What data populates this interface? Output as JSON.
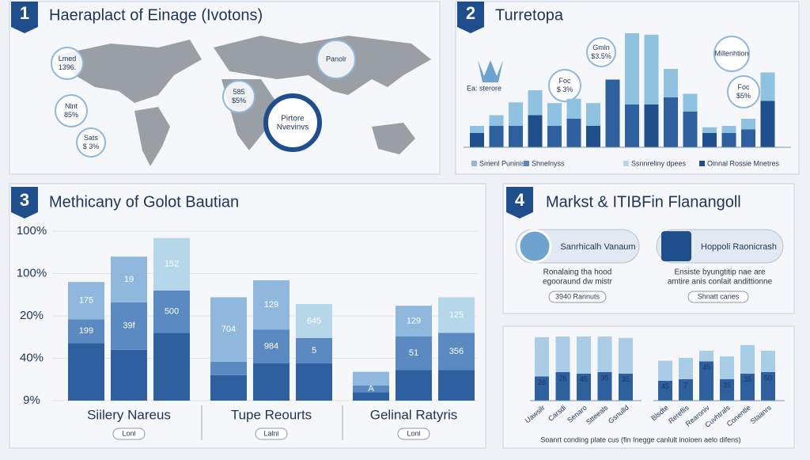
{
  "panel1": {
    "number": "1",
    "title": "Haeraplact of Einage (Ivotons)",
    "bubbles": [
      [
        "Lmed",
        "1396."
      ],
      [
        "Nlnt",
        "85%"
      ],
      [
        "Sats",
        "$ 3%"
      ],
      [
        "Panolr"
      ],
      [
        "585",
        "$5%"
      ]
    ],
    "highlight": [
      "Pirtore",
      "Nvevinvs"
    ]
  },
  "panel2": {
    "number": "2",
    "title": "Turretopa",
    "icon_label": "Ea: sterore",
    "bubbles": [
      [
        "Gmln",
        "$3.5%"
      ],
      [
        "Foc",
        "$ 3%"
      ],
      [
        "Millenhtion"
      ],
      [
        "Foc",
        "$5%"
      ]
    ],
    "bars_dark": [
      20,
      30,
      30,
      45,
      30,
      40,
      30,
      95,
      60,
      60,
      70,
      50,
      20,
      20,
      25,
      65
    ],
    "bars_light": [
      10,
      15,
      33,
      35,
      32,
      28,
      32,
      0,
      100,
      98,
      40,
      25,
      8,
      10,
      15,
      40
    ],
    "legend": [
      "Smenl Puninis",
      "Shnelnyss",
      "Ssnnreliny dpees",
      "Oinnal Rossie Mnetres"
    ]
  },
  "panel3": {
    "number": "3",
    "title": "Methicany of Golot Bautian",
    "y_labels": [
      "100%",
      "100%",
      "20%",
      "40%",
      "9%"
    ],
    "groups": [
      {
        "name": "Siilery Nareus",
        "button": "Loni",
        "bars": [
          {
            "segments": [
              34,
              14,
              22
            ],
            "labels": [
              null,
              "199",
              "175"
            ]
          },
          {
            "segments": [
              30,
              28,
              27
            ],
            "labels": [
              null,
              "39f",
              "19"
            ]
          },
          {
            "segments": [
              40,
              25,
              31
            ],
            "labels": [
              null,
              "500",
              "152"
            ]
          }
        ]
      },
      {
        "name": "Tupe Reourts",
        "button": "Lalni",
        "bars": [
          {
            "segments": [
              15,
              8,
              38
            ],
            "labels": [
              null,
              null,
              "704"
            ]
          },
          {
            "segments": [
              22,
              20,
              29
            ],
            "labels": [
              null,
              "984",
              "129"
            ]
          },
          {
            "segments": [
              22,
              15,
              20
            ],
            "labels": [
              null,
              "5",
              "645"
            ]
          }
        ]
      },
      {
        "name": "Gelinal Ratyris",
        "button": "Loni",
        "bars": [
          {
            "segments": [
              5,
              4,
              8
            ],
            "labels": [
              null,
              "A",
              null
            ]
          },
          {
            "segments": [
              18,
              20,
              18
            ],
            "labels": [
              null,
              "51",
              "129"
            ]
          },
          {
            "segments": [
              18,
              22,
              21
            ],
            "labels": [
              null,
              "356",
              "125"
            ]
          }
        ]
      }
    ]
  },
  "panel4": {
    "number": "4",
    "title": "Markst & ITIBFin Flanangoll",
    "cards": [
      {
        "title": "Sanrhicalh Vanaum",
        "text": [
          "Ronalaing tha hood",
          "egooraund dw mistr"
        ],
        "button": "3940 Rannuts"
      },
      {
        "title": "Hoppoli Raonicrash",
        "text": [
          "Ensiste byungtitip nae are",
          "amtire anis conlait andittionne"
        ],
        "button": "Shnatt canes"
      }
    ]
  },
  "panel5": {
    "caption": "Soanrt conding plate cus (fin Inegge canlult inoioen aelo difens)",
    "groups": [
      {
        "dark": [
          34,
          40,
          38,
          40,
          38
        ],
        "light": [
          55,
          50,
          52,
          50,
          50
        ],
        "labels": [
          "26",
          "26",
          "45",
          "35",
          "35"
        ],
        "names": [
          "Uawsilr",
          "Carsdi",
          "Senaro",
          "Stteeals",
          "Gsnulld"
        ]
      },
      {
        "dark": [
          28,
          30,
          55,
          30,
          38,
          40
        ],
        "light": [
          28,
          30,
          15,
          32,
          40,
          30
        ],
        "labels": [
          "45",
          "7",
          "45",
          "35",
          "35",
          "50"
        ],
        "names": [
          "Blsdte",
          "Rereflis",
          "Rearoniv",
          "Cuvhtrals",
          "Conentle",
          "Staanrs"
        ]
      }
    ]
  }
}
